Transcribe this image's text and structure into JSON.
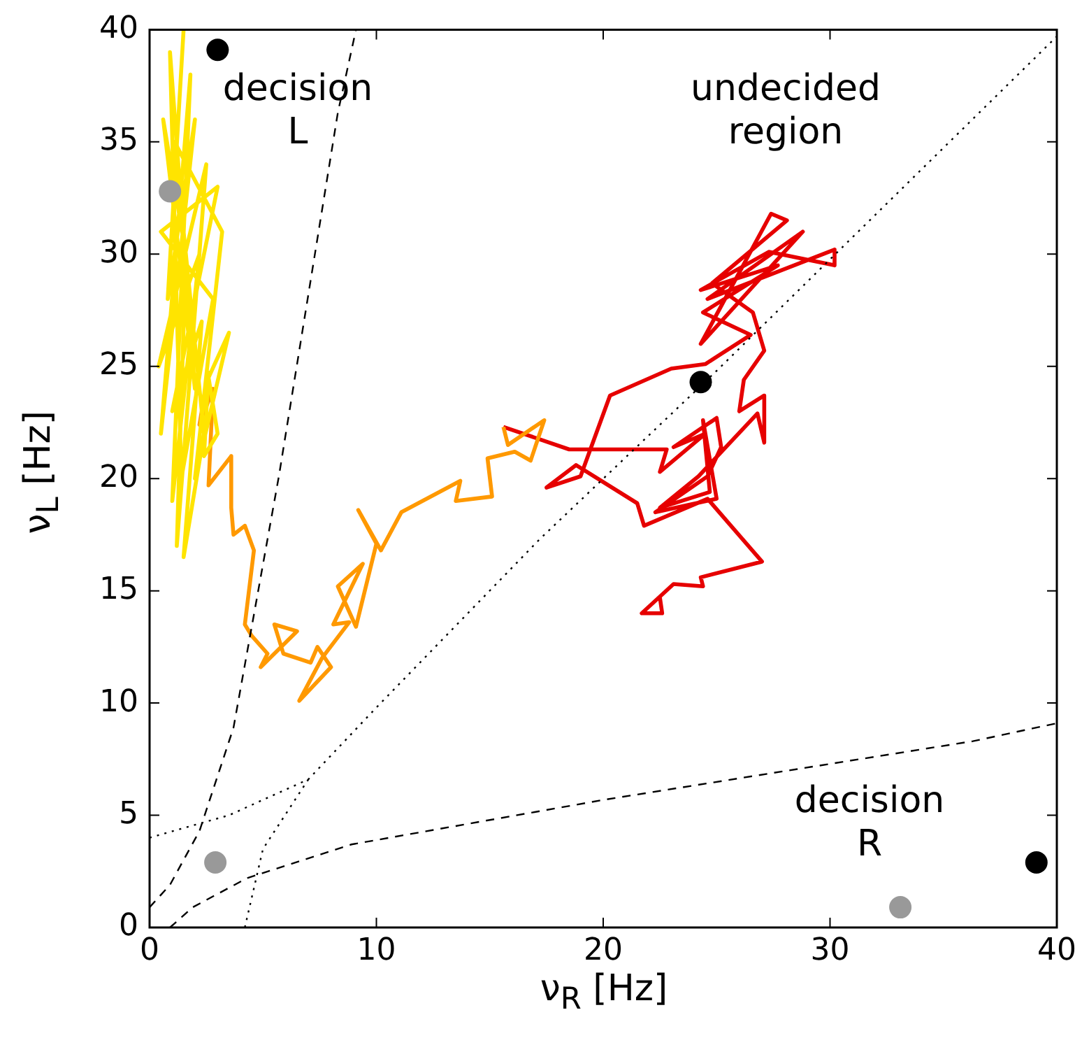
{
  "chart_data": {
    "type": "line",
    "xlabel": "ν$_{R}$ [Hz]",
    "ylabel": "ν$_{L}$ [Hz]",
    "xlim": [
      0,
      40
    ],
    "ylim": [
      0,
      40
    ],
    "xticks": [
      0,
      10,
      20,
      30,
      40
    ],
    "yticks": [
      0,
      5,
      10,
      15,
      20,
      25,
      30,
      35,
      40
    ],
    "grid": false,
    "annotations": [
      "decision L",
      "undecided region",
      "decision R"
    ],
    "series": [
      {
        "type": "line",
        "color": "#000000",
        "line_style": "dashed",
        "x": [
          0,
          0.9,
          2.2,
          3.7,
          5.7,
          8.3,
          9.1
        ],
        "values": [
          0.9,
          1.9,
          4.3,
          8.9,
          20.1,
          36.3,
          40
        ]
      },
      {
        "type": "line",
        "color": "#000000",
        "line_style": "dashed",
        "x": [
          0.9,
          1.9,
          4.3,
          8.9,
          20.1,
          36.3,
          40
        ],
        "values": [
          0,
          0.9,
          2.2,
          3.7,
          5.7,
          8.3,
          9.1
        ]
      },
      {
        "type": "line",
        "color": "#000000",
        "line_style": "dotted",
        "x": [
          0,
          3.5,
          7,
          10,
          17.2,
          25,
          40
        ],
        "values": [
          4,
          5,
          6.6,
          9.8,
          17.3,
          24.8,
          39.7
        ]
      },
      {
        "type": "line",
        "color": "#000000",
        "line_style": "dotted",
        "x": [
          4.2,
          5,
          7
        ],
        "values": [
          0,
          3.5,
          6.6
        ]
      },
      {
        "type": "line",
        "color": "#ffe400",
        "x": [
          1.5,
          0.8,
          2.0,
          0.5,
          1.8,
          1.0,
          2.2,
          0.4,
          2.5,
          1.2,
          1.6,
          0.6,
          2.0,
          0.9,
          1.4,
          2.8,
          0.5,
          3.0,
          1.0,
          2.3,
          1.5,
          2.4,
          1.1,
          3.2,
          2.0,
          3.5,
          2.6,
          3.0,
          2.4,
          2.6
        ],
        "values": [
          40,
          28,
          36,
          22,
          38,
          19,
          30,
          25,
          34,
          17,
          30,
          36,
          24,
          39,
          20,
          28,
          31,
          33,
          23,
          27,
          16.5,
          22,
          35,
          31,
          20,
          26.5,
          24.5,
          22,
          21,
          24.8
        ]
      },
      {
        "type": "line",
        "color": "#ff9900",
        "x": [
          2.6,
          2.2,
          2.8,
          2.6,
          3.6,
          3.6,
          3.7,
          4.2,
          4.6,
          4.2,
          4.5,
          5.2,
          4.9,
          6.5,
          5.5,
          5.9,
          7.1,
          7.4,
          8.0,
          6.6,
          7.6,
          8.8,
          8.1,
          9.4,
          8.3,
          9.1,
          10.0,
          9.2,
          10.2,
          11.1,
          13.7,
          13.5,
          15.1,
          14.9,
          16.1,
          16.8,
          17.4,
          15.8,
          15.6
        ],
        "values": [
          24.8,
          22.4,
          24.0,
          19.7,
          21.0,
          18.7,
          17.5,
          17.9,
          16.8,
          13.5,
          13.0,
          12.2,
          11.6,
          13.2,
          13.5,
          12.2,
          11.8,
          12.5,
          11.6,
          10.1,
          12.0,
          13.6,
          13.5,
          16.2,
          15.2,
          13.4,
          17.1,
          18.6,
          16.8,
          18.5,
          19.9,
          19.0,
          19.2,
          20.9,
          21.2,
          20.8,
          22.6,
          21.5,
          22.3
        ]
      },
      {
        "type": "line",
        "color": "#e60000",
        "x": [
          15.6,
          18.5,
          22.8,
          22.5,
          24.5,
          23.1,
          25.0,
          25.2,
          24.6,
          22.3,
          25.0,
          24.4,
          24.7,
          22.5,
          24.2,
          26.8,
          27.1,
          27.1,
          26.0,
          26.2,
          27.1,
          26.6,
          24.8,
          28.1,
          27.4,
          24.3,
          28.8,
          24.6,
          30.2,
          30.2,
          27.3,
          24.3,
          27.7,
          24.4,
          26.5,
          24.5,
          23.0,
          20.3,
          19.0,
          17.5,
          18.8,
          21.5,
          21.8,
          24.6,
          27.0,
          24.3,
          24.4,
          23.1,
          21.7,
          22.6,
          22.5
        ],
        "values": [
          22.3,
          21.3,
          21.3,
          20.3,
          22.0,
          21.4,
          22.7,
          21.4,
          20.1,
          18.5,
          19.1,
          22.6,
          19.4,
          18.7,
          20.1,
          22.9,
          21.6,
          23.7,
          23.0,
          24.4,
          25.7,
          27.4,
          28.7,
          31.5,
          31.8,
          26.0,
          31.0,
          28.0,
          30.2,
          29.5,
          30.1,
          28.4,
          29.5,
          27.4,
          26.4,
          25.1,
          24.9,
          23.7,
          20.1,
          19.6,
          20.6,
          18.9,
          17.9,
          19.1,
          16.3,
          15.6,
          15.2,
          15.3,
          14.0,
          14.0,
          14.7
        ]
      },
      {
        "type": "scatter",
        "color": "#000000",
        "marker": "circle",
        "x": [
          3,
          24.3,
          39.1
        ],
        "values": [
          39.1,
          24.3,
          2.9
        ]
      },
      {
        "type": "scatter",
        "color": "#999999",
        "marker": "circle",
        "x": [
          0.9,
          2.9,
          33.1
        ],
        "values": [
          32.8,
          2.9,
          0.9
        ]
      }
    ]
  }
}
